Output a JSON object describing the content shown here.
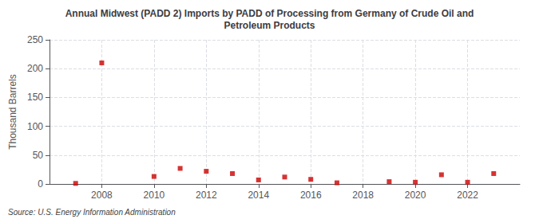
{
  "chart_data": {
    "type": "scatter",
    "title": "Annual Midwest (PADD 2) Imports by PADD of Processing from Germany of Crude Oil and\nPetroleum Products",
    "ylabel": "Thousand Barrels",
    "annotations": [
      "Source: U.S. Energy Information Administration"
    ],
    "x": [
      2007,
      2008,
      2010,
      2011,
      2012,
      2013,
      2014,
      2015,
      2016,
      2017,
      2019,
      2020,
      2021,
      2022,
      2023
    ],
    "values": [
      1,
      210,
      13,
      27,
      22,
      18,
      7,
      12,
      8,
      2,
      4,
      3,
      16,
      3,
      18
    ],
    "color": "#cc0000",
    "marker": "square",
    "xlim": [
      2006.0,
      2024.0
    ],
    "xticks": [
      2008,
      2010,
      2012,
      2014,
      2016,
      2018,
      2020,
      2022
    ],
    "ylim": [
      0,
      250
    ],
    "yticks": [
      0,
      50,
      100,
      150,
      200,
      250
    ],
    "grid": true
  }
}
